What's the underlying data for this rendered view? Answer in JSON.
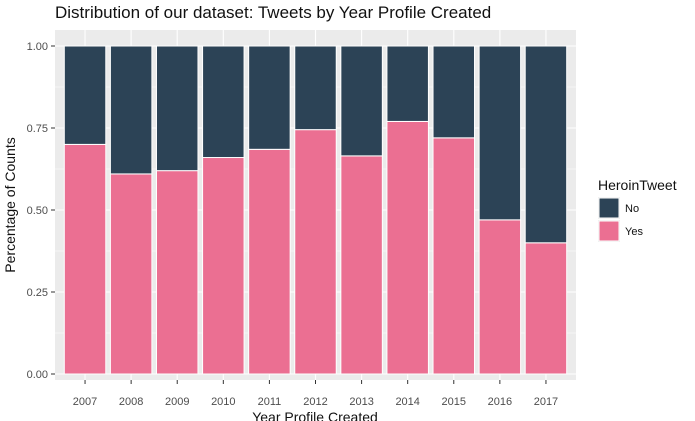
{
  "chart_data": {
    "type": "bar",
    "stacked": true,
    "normalized": true,
    "title": "Distribution of our dataset: Tweets by Year Profile Created",
    "xlabel": "Year Profile Created",
    "ylabel": "Percentage of Counts",
    "ylim": [
      0,
      1
    ],
    "yticks": [
      "0.00",
      "0.25",
      "0.50",
      "0.75",
      "1.00"
    ],
    "grid": true,
    "legend": {
      "title": "HeroinTweet",
      "position": "right"
    },
    "categories": [
      "2007",
      "2008",
      "2009",
      "2010",
      "2011",
      "2012",
      "2013",
      "2014",
      "2015",
      "2016",
      "2017"
    ],
    "series": [
      {
        "name": "Yes",
        "color": "#eb6f92",
        "values": [
          0.7,
          0.61,
          0.62,
          0.66,
          0.685,
          0.745,
          0.665,
          0.77,
          0.72,
          0.47,
          0.4
        ]
      },
      {
        "name": "No",
        "color": "#2c4356",
        "values": [
          0.3,
          0.39,
          0.38,
          0.34,
          0.315,
          0.255,
          0.335,
          0.23,
          0.28,
          0.53,
          0.6
        ]
      }
    ],
    "legend_order": [
      "No",
      "Yes"
    ]
  },
  "colors": {
    "panel_background": "#ebebeb",
    "gridline": "#ffffff",
    "bar_outline": "#ffffff"
  }
}
